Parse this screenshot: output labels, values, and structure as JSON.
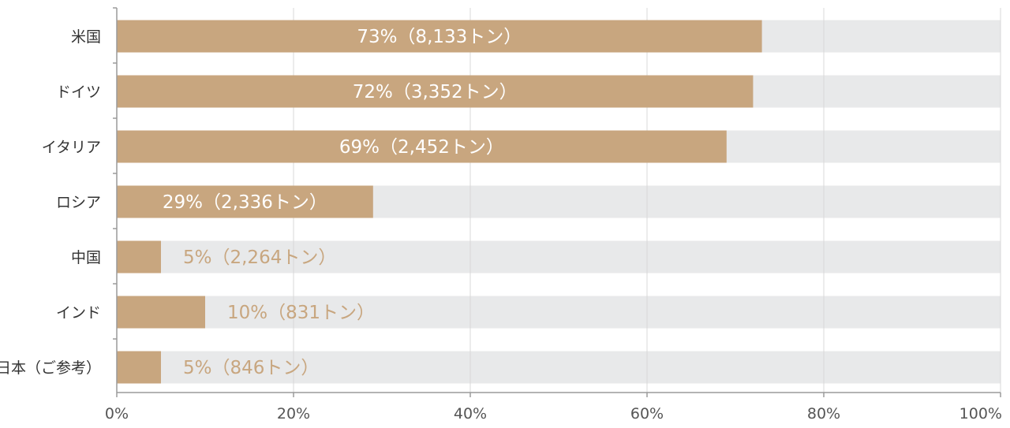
{
  "chart_data": {
    "type": "bar",
    "orientation": "horizontal",
    "categories": [
      "米国",
      "ドイツ",
      "イタリア",
      "ロシア",
      "中国",
      "インド",
      "日本（ご参考）"
    ],
    "values": [
      73,
      72,
      69,
      29,
      5,
      10,
      5
    ],
    "labels": [
      "73%（8,133トン）",
      "72%（3,352トン）",
      "69%（2,452トン）",
      "29%（2,336トン）",
      "5%（2,264トン）",
      "10%（831トン）",
      "5%（846トン）"
    ],
    "xlim": [
      0,
      100
    ],
    "xticks": [
      "0%",
      "20%",
      "40%",
      "60%",
      "80%",
      "100%"
    ],
    "grid": true,
    "colors": {
      "bar": "#C8A67F",
      "track": "#E8E9EA",
      "label_inside": "#FFFFFF",
      "label_outside": "#C8A67F",
      "grid": "#D8D8D8",
      "axis": "#9A9A9A"
    }
  }
}
